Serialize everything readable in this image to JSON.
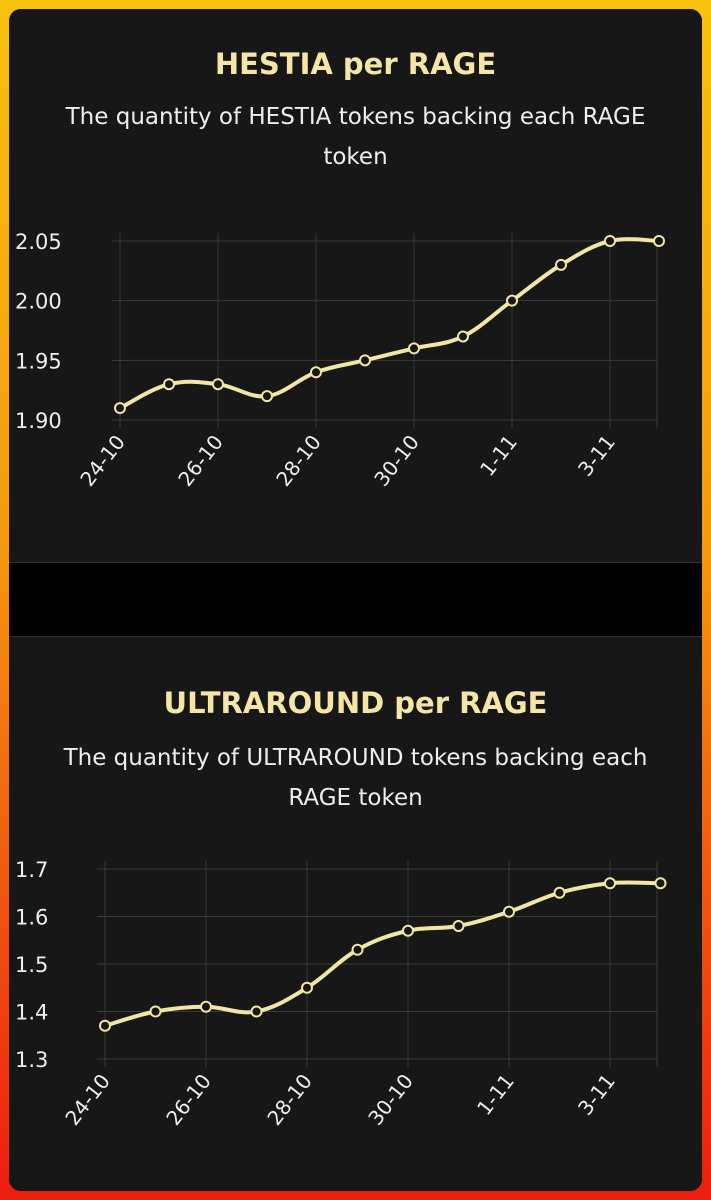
{
  "colors": {
    "line": "#f2e6a4",
    "grid": "#3a3a3a",
    "panel_bg": "#171717",
    "title": "#f5e6a8"
  },
  "chart_data": [
    {
      "type": "line",
      "title": "HESTIA per RAGE",
      "subtitle": "The quantity of HESTIA tokens backing each RAGE token",
      "x": [
        "24-10",
        "25-10",
        "26-10",
        "27-10",
        "28-10",
        "29-10",
        "30-10",
        "31-10",
        "1-11",
        "2-11",
        "3-11",
        "4-11"
      ],
      "xtick_labels": [
        "24-10",
        "26-10",
        "28-10",
        "30-10",
        "1-11",
        "3-11"
      ],
      "series": [
        {
          "values": [
            1.91,
            1.93,
            1.93,
            1.92,
            1.94,
            1.95,
            1.96,
            1.97,
            2.0,
            2.03,
            2.05,
            2.05
          ]
        }
      ],
      "yticks": [
        "1.90",
        "1.95",
        "2.00",
        "2.05"
      ],
      "ylim": [
        1.9,
        2.05
      ],
      "grid": true,
      "legend": "none"
    },
    {
      "type": "line",
      "title": "ULTRAROUND per RAGE",
      "subtitle": "The quantity of ULTRAROUND tokens backing each RAGE token",
      "x": [
        "24-10",
        "25-10",
        "26-10",
        "27-10",
        "28-10",
        "29-10",
        "30-10",
        "31-10",
        "1-11",
        "2-11",
        "3-11",
        "4-11"
      ],
      "xtick_labels": [
        "24-10",
        "26-10",
        "28-10",
        "30-10",
        "1-11",
        "3-11"
      ],
      "series": [
        {
          "values": [
            1.37,
            1.4,
            1.41,
            1.4,
            1.45,
            1.53,
            1.57,
            1.58,
            1.61,
            1.65,
            1.67,
            1.67
          ]
        }
      ],
      "yticks": [
        "1.3",
        "1.4",
        "1.5",
        "1.6",
        "1.7"
      ],
      "ylim": [
        1.3,
        1.7
      ],
      "grid": true,
      "legend": "none"
    }
  ]
}
